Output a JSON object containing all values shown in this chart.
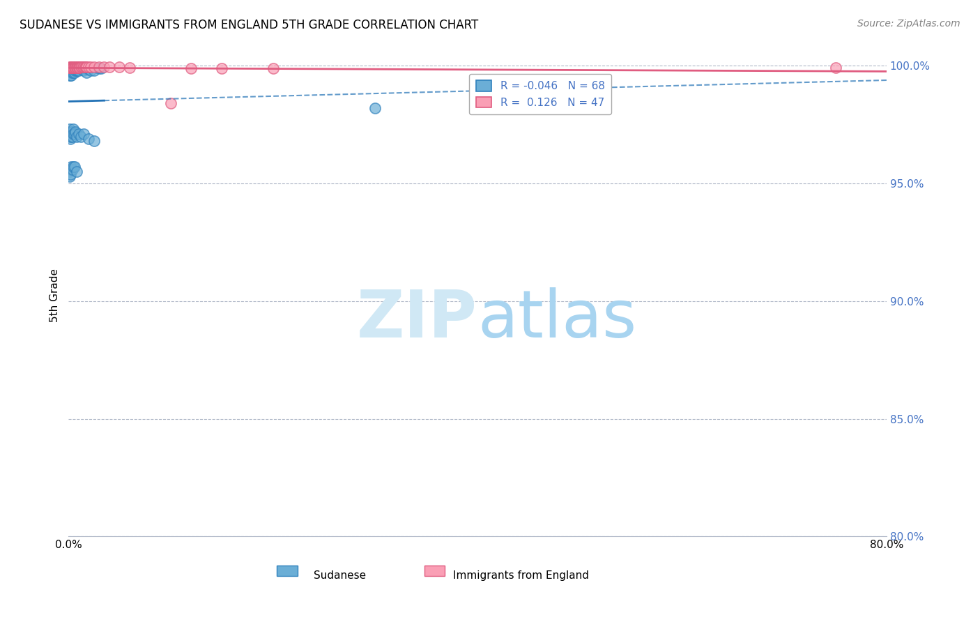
{
  "title": "SUDANESE VS IMMIGRANTS FROM ENGLAND 5TH GRADE CORRELATION CHART",
  "source_text": "Source: ZipAtlas.com",
  "xlabel": "",
  "ylabel": "5th Grade",
  "xlim": [
    0.0,
    0.8
  ],
  "ylim": [
    0.8,
    1.005
  ],
  "yticks": [
    0.8,
    0.85,
    0.9,
    0.95,
    1.0
  ],
  "ytick_labels": [
    "80.0%",
    "85.0%",
    "90.0%",
    "95.0%",
    "100.0%"
  ],
  "xticks": [
    0.0,
    0.1,
    0.2,
    0.3,
    0.4,
    0.5,
    0.6,
    0.7,
    0.8
  ],
  "xtick_labels": [
    "0.0%",
    "",
    "",
    "",
    "",
    "",
    "",
    "",
    "80.0%"
  ],
  "blue_R": -0.046,
  "blue_N": 68,
  "pink_R": 0.126,
  "pink_N": 47,
  "blue_label": "Sudanese",
  "pink_label": "Immigrants from England",
  "blue_color": "#6baed6",
  "pink_color": "#fa9fb5",
  "blue_edge_color": "#3182bd",
  "pink_edge_color": "#e05c80",
  "trend_blue_color": "#2171b5",
  "trend_pink_color": "#e05c80",
  "watermark_color": "#d0e8f5",
  "blue_x": [
    0.001,
    0.001,
    0.001,
    0.001,
    0.002,
    0.002,
    0.002,
    0.002,
    0.003,
    0.003,
    0.003,
    0.003,
    0.004,
    0.004,
    0.004,
    0.005,
    0.005,
    0.005,
    0.006,
    0.006,
    0.006,
    0.007,
    0.007,
    0.008,
    0.008,
    0.009,
    0.009,
    0.01,
    0.01,
    0.012,
    0.013,
    0.015,
    0.016,
    0.018,
    0.018,
    0.02,
    0.022,
    0.025,
    0.03,
    0.032,
    0.001,
    0.001,
    0.002,
    0.002,
    0.003,
    0.003,
    0.004,
    0.004,
    0.005,
    0.005,
    0.006,
    0.007,
    0.008,
    0.01,
    0.012,
    0.015,
    0.02,
    0.025,
    0.001,
    0.001,
    0.002,
    0.002,
    0.003,
    0.004,
    0.005,
    0.006,
    0.008,
    0.3
  ],
  "blue_y": [
    0.999,
    0.998,
    0.997,
    0.996,
    0.999,
    0.998,
    0.997,
    0.996,
    0.999,
    0.998,
    0.997,
    0.996,
    0.999,
    0.998,
    0.997,
    0.999,
    0.998,
    0.997,
    0.999,
    0.998,
    0.997,
    0.999,
    0.998,
    0.999,
    0.998,
    0.999,
    0.998,
    0.999,
    0.998,
    0.999,
    0.999,
    0.998,
    0.999,
    0.9985,
    0.997,
    0.9985,
    0.998,
    0.998,
    0.999,
    0.999,
    0.973,
    0.97,
    0.971,
    0.969,
    0.972,
    0.97,
    0.972,
    0.97,
    0.973,
    0.971,
    0.971,
    0.972,
    0.97,
    0.971,
    0.97,
    0.971,
    0.969,
    0.968,
    0.955,
    0.953,
    0.956,
    0.954,
    0.957,
    0.956,
    0.957,
    0.957,
    0.955,
    0.982
  ],
  "pink_x": [
    0.001,
    0.001,
    0.001,
    0.002,
    0.002,
    0.002,
    0.003,
    0.003,
    0.003,
    0.004,
    0.004,
    0.004,
    0.005,
    0.005,
    0.005,
    0.006,
    0.006,
    0.007,
    0.007,
    0.008,
    0.008,
    0.009,
    0.009,
    0.01,
    0.01,
    0.011,
    0.011,
    0.012,
    0.013,
    0.014,
    0.015,
    0.016,
    0.017,
    0.018,
    0.02,
    0.022,
    0.025,
    0.03,
    0.035,
    0.04,
    0.05,
    0.06,
    0.1,
    0.12,
    0.15,
    0.2,
    0.75
  ],
  "pink_y": [
    0.9995,
    0.9993,
    0.9991,
    0.9995,
    0.9993,
    0.9991,
    0.9995,
    0.9993,
    0.9991,
    0.9995,
    0.9993,
    0.9991,
    0.9995,
    0.9993,
    0.9991,
    0.9995,
    0.9993,
    0.9995,
    0.9993,
    0.9995,
    0.9993,
    0.9995,
    0.9993,
    0.9995,
    0.9993,
    0.9995,
    0.9993,
    0.9995,
    0.9995,
    0.9995,
    0.9995,
    0.9995,
    0.9995,
    0.9995,
    0.9995,
    0.9995,
    0.9995,
    0.9995,
    0.9995,
    0.9995,
    0.9995,
    0.9993,
    0.984,
    0.999,
    0.999,
    0.999,
    0.9993
  ]
}
